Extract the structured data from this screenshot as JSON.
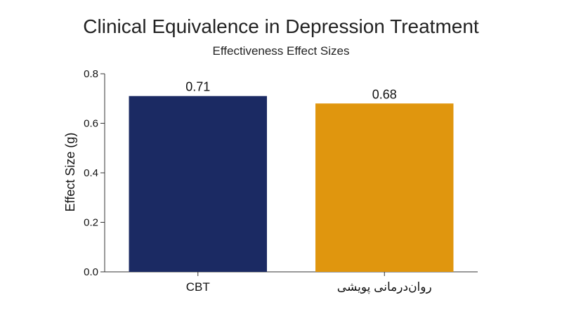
{
  "chart_data": {
    "type": "bar",
    "title": "Clinical Equivalence in Depression Treatment",
    "subtitle": "Effectiveness Effect Sizes",
    "xlabel": "",
    "ylabel": "Effect Size (g)",
    "ylim": [
      0,
      0.8
    ],
    "yticks": [
      0.0,
      0.2,
      0.4,
      0.6,
      0.8
    ],
    "ytick_labels": [
      "0.0",
      "0.2",
      "0.4",
      "0.6",
      "0.8"
    ],
    "grid": false,
    "categories": [
      "CBT",
      "روان‌درمانی پویشی"
    ],
    "values": [
      0.71,
      0.68
    ],
    "data_labels": [
      "0.71",
      "0.68"
    ],
    "colors": [
      "#1b2a63",
      "#e0960e"
    ]
  }
}
